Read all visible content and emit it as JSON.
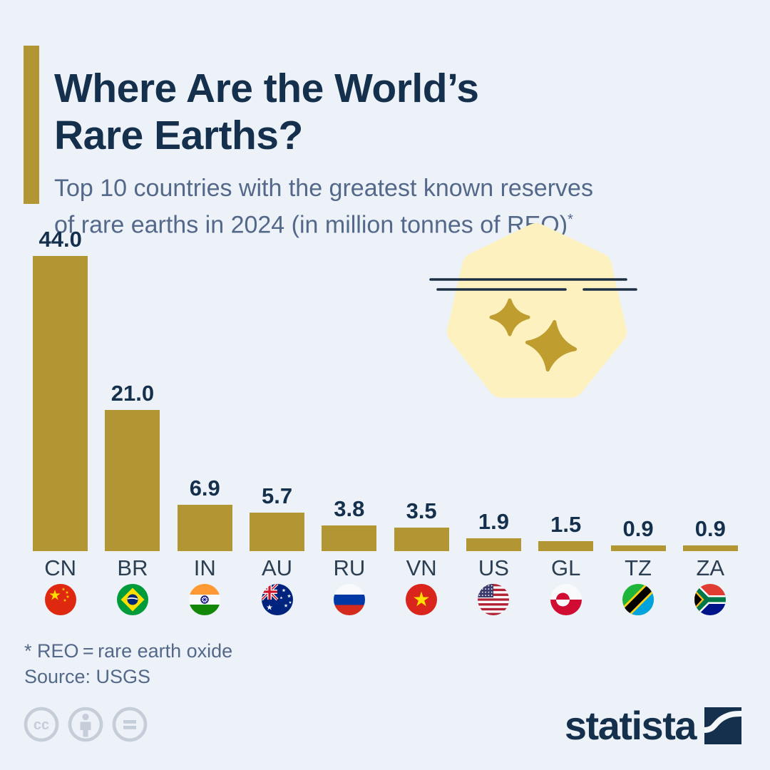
{
  "page": {
    "background": "#edf2f8"
  },
  "header": {
    "accent_color": "#b39634",
    "title_line1": "Where Are the World’s",
    "title_line2": "Rare Earths?",
    "subtitle_line1": "Top 10 countries with the greatest known reserves",
    "subtitle_line2": "of rare earths in 2024 (in million tonnes of REO)",
    "footnote_marker": "*"
  },
  "chart_data": {
    "type": "bar",
    "title": "Where Are the World's Rare Earths?",
    "subtitle": "Top 10 countries with the greatest known reserves of rare earths in 2024 (in million tonnes of REO)*",
    "unit": "million tonnes of REO",
    "categories": [
      "CN",
      "BR",
      "IN",
      "AU",
      "RU",
      "VN",
      "US",
      "GL",
      "TZ",
      "ZA"
    ],
    "values": [
      44.0,
      21.0,
      6.9,
      5.7,
      3.8,
      3.5,
      1.9,
      1.5,
      0.9,
      0.9
    ],
    "value_labels": [
      "44.0",
      "21.0",
      "6.9",
      "5.7",
      "3.8",
      "3.5",
      "1.9",
      "1.5",
      "0.9",
      "0.9"
    ],
    "flag_icons": [
      "china-flag-icon",
      "brazil-flag-icon",
      "india-flag-icon",
      "australia-flag-icon",
      "russia-flag-icon",
      "vietnam-flag-icon",
      "united-states-flag-icon",
      "greenland-flag-icon",
      "tanzania-flag-icon",
      "south-africa-flag-icon"
    ],
    "bar_color": "#b39634",
    "value_label_color": "#15304d",
    "ylim": [
      0,
      44
    ],
    "grid": false,
    "legend": null
  },
  "decoration": {
    "icons": [
      "blob-shape",
      "ground-lines-icon",
      "sparkle-icon",
      "sparkle-icon"
    ],
    "blob_color": "#fcf1bf",
    "sparkle_color": "#bf9d2f",
    "line_color": "#1d2f45"
  },
  "footer": {
    "footnote": "* REO = rare earth oxide",
    "source": "Source: USGS",
    "license_icons": [
      "cc-icon",
      "cc-by-icon",
      "cc-nd-icon"
    ],
    "brand_name": "statista"
  }
}
